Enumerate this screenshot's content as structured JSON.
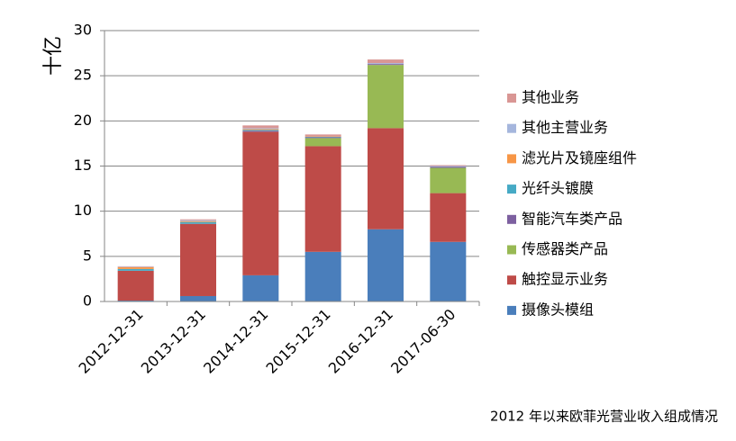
{
  "chart_data": {
    "type": "stacked_bar",
    "y_label": "十亿",
    "caption": "2012 年以来欧菲光营业收入组成情况",
    "categories": [
      "2012-12-31",
      "2013-12-31",
      "2014-12-31",
      "2015-12-31",
      "2016-12-31",
      "2017-06-30"
    ],
    "series": [
      {
        "name": "摄像头模组",
        "color": "#4a7ebb",
        "values": [
          0.1,
          0.6,
          2.9,
          5.5,
          8.0,
          6.6
        ]
      },
      {
        "name": "触控显示业务",
        "color": "#be4b48",
        "values": [
          3.3,
          8.0,
          15.9,
          11.7,
          11.2,
          5.4
        ]
      },
      {
        "name": "传感器类产品",
        "color": "#98b954",
        "values": [
          0,
          0,
          0,
          0.9,
          7.0,
          2.8
        ]
      },
      {
        "name": "智能汽车类产品",
        "color": "#7d60a0",
        "values": [
          0,
          0,
          0.1,
          0.1,
          0.1,
          0.1
        ]
      },
      {
        "name": "光纤头镀膜",
        "color": "#46aac5",
        "values": [
          0.2,
          0.2,
          0.1,
          0.05,
          0,
          0
        ]
      },
      {
        "name": "滤光片及镜座组件",
        "color": "#f79646",
        "values": [
          0.2,
          0.1,
          0.1,
          0.05,
          0,
          0
        ]
      },
      {
        "name": "其他主营业务",
        "color": "#a5b6dd",
        "values": [
          0.05,
          0.1,
          0.1,
          0,
          0.1,
          0.1
        ]
      },
      {
        "name": "其他业务",
        "color": "#d99694",
        "values": [
          0.05,
          0.1,
          0.3,
          0.2,
          0.4,
          0.1
        ]
      }
    ],
    "ylim": [
      0,
      30
    ],
    "yticks": [
      0,
      5,
      10,
      15,
      20,
      25,
      30
    ],
    "grid": true
  }
}
